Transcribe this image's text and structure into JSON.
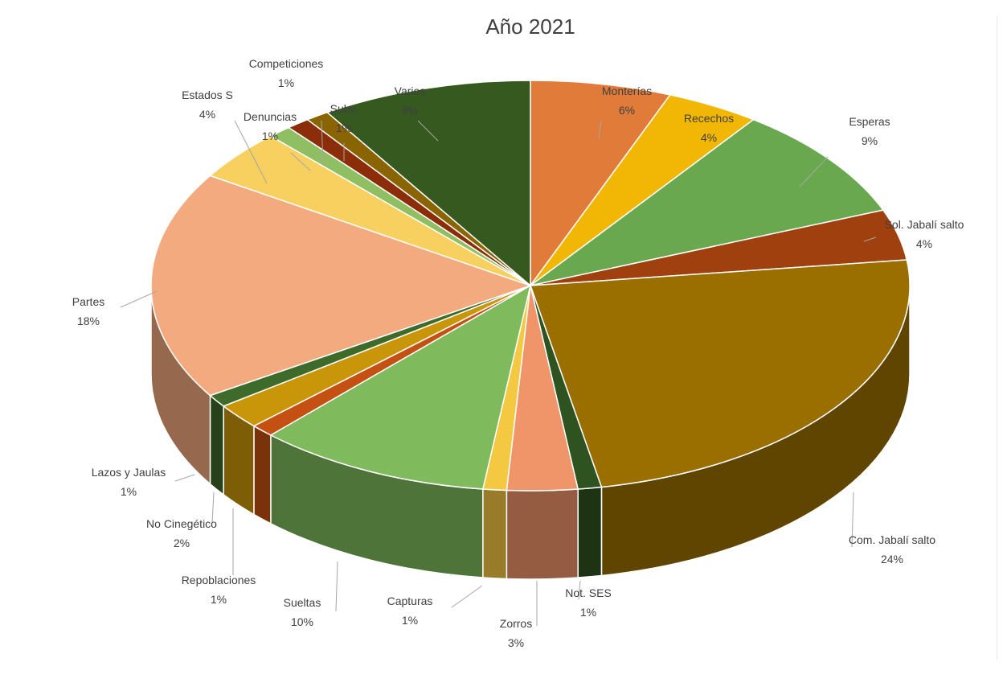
{
  "chart_data": {
    "type": "pie",
    "title": "Año 2021",
    "slices": [
      {
        "label": "Monterías",
        "pct_label": "6%",
        "value": 6,
        "color": "#e07b39"
      },
      {
        "label": "Recechos",
        "pct_label": "4%",
        "value": 4,
        "color": "#f2b705"
      },
      {
        "label": "Esperas",
        "pct_label": "9%",
        "value": 9,
        "color": "#6aa84f"
      },
      {
        "label": "Sol. Jabalí salto",
        "pct_label": "4%",
        "value": 4,
        "color": "#a0400f"
      },
      {
        "label": "Com. Jabalí salto",
        "pct_label": "24%",
        "value": 24,
        "color": "#9a6f00"
      },
      {
        "label": "Not. SES",
        "pct_label": "1%",
        "value": 1,
        "color": "#2e5220"
      },
      {
        "label": "Zorros",
        "pct_label": "3%",
        "value": 3,
        "color": "#f0956a"
      },
      {
        "label": "Capturas",
        "pct_label": "1%",
        "value": 1,
        "color": "#f5c842"
      },
      {
        "label": "Sueltas",
        "pct_label": "10%",
        "value": 10,
        "color": "#7fbb5c"
      },
      {
        "label": "Repoblaciones",
        "pct_label": "1%",
        "value": 1,
        "color": "#c45012"
      },
      {
        "label": "No Cinegético",
        "pct_label": "2%",
        "value": 2,
        "color": "#c9960a"
      },
      {
        "label": "Lazos y Jaulas",
        "pct_label": "1%",
        "value": 1,
        "color": "#3f6b2a"
      },
      {
        "label": "Partes",
        "pct_label": "18%",
        "value": 18,
        "color": "#f2aa7e"
      },
      {
        "label": "Estados S",
        "pct_label": "4%",
        "value": 4,
        "color": "#f7d060"
      },
      {
        "label": "Denuncias",
        "pct_label": "1%",
        "value": 1,
        "color": "#8fbf62"
      },
      {
        "label": "Competiciones",
        "pct_label": "1%",
        "value": 1,
        "color": "#8c2d0a"
      },
      {
        "label": "Subv.",
        "pct_label": "1%",
        "value": 1,
        "color": "#8a6400"
      },
      {
        "label": "Varios",
        "pct_label": "9%",
        "value": 9,
        "color": "#35591f"
      }
    ],
    "legend": "none",
    "style": "3d-exploded-off"
  }
}
